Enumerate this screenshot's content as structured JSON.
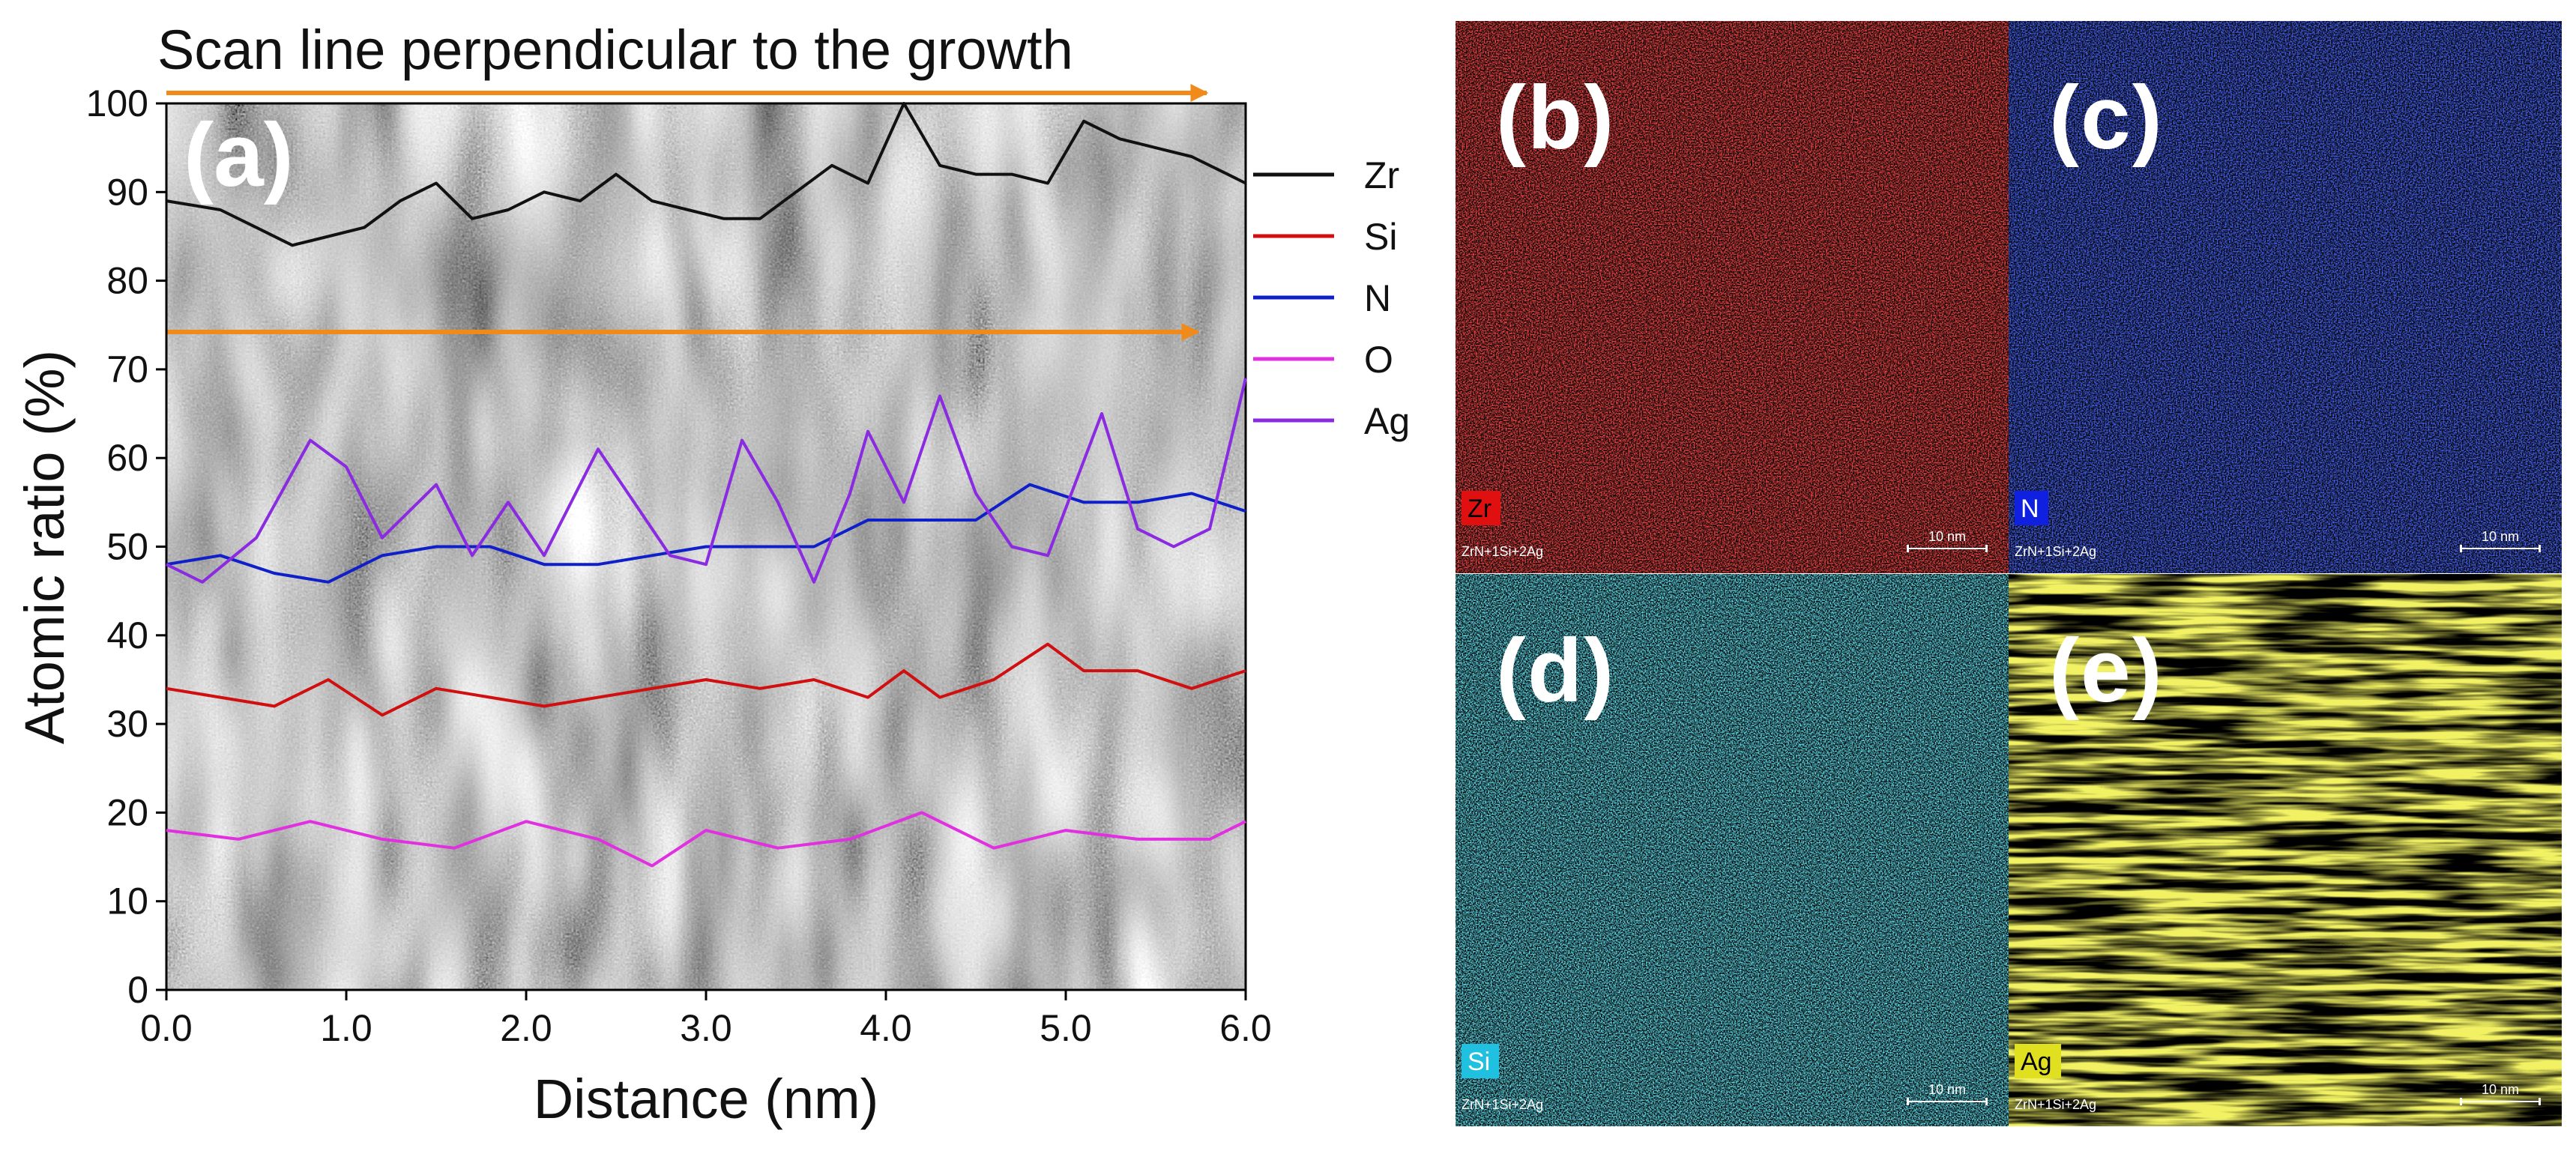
{
  "chart_data": {
    "type": "line",
    "panel_label": "(a)",
    "title": "Scan line perpendicular to the growth",
    "xlabel": "Distance (nm)",
    "ylabel": "Atomic ratio (%)",
    "xlim": [
      0,
      6
    ],
    "ylim": [
      0,
      100
    ],
    "x_ticks": [
      "0.0",
      "1.0",
      "2.0",
      "3.0",
      "4.0",
      "5.0",
      "6.0"
    ],
    "y_ticks": [
      "0",
      "10",
      "20",
      "30",
      "40",
      "50",
      "60",
      "70",
      "80",
      "90",
      "100"
    ],
    "legend_position": "right",
    "series": [
      {
        "name": "Zr",
        "color": "#111111",
        "x": [
          0,
          0.3,
          0.5,
          0.7,
          0.9,
          1.1,
          1.3,
          1.5,
          1.7,
          1.9,
          2.1,
          2.3,
          2.5,
          2.7,
          2.9,
          3.1,
          3.3,
          3.5,
          3.7,
          3.9,
          4.1,
          4.3,
          4.5,
          4.7,
          4.9,
          5.1,
          5.3,
          5.5,
          5.7,
          5.9,
          6.0
        ],
        "y": [
          89,
          88,
          86,
          84,
          85,
          86,
          89,
          91,
          87,
          88,
          90,
          89,
          92,
          89,
          88,
          87,
          87,
          90,
          93,
          91,
          100,
          93,
          92,
          92,
          91,
          98,
          96,
          95,
          94,
          92,
          91
        ]
      },
      {
        "name": "Si",
        "color": "#d01010",
        "x": [
          0,
          0.3,
          0.6,
          0.9,
          1.2,
          1.5,
          1.8,
          2.1,
          2.4,
          2.7,
          3.0,
          3.3,
          3.6,
          3.9,
          4.1,
          4.3,
          4.6,
          4.9,
          5.1,
          5.4,
          5.7,
          6.0
        ],
        "y": [
          34,
          33,
          32,
          35,
          31,
          34,
          33,
          32,
          33,
          34,
          35,
          34,
          35,
          33,
          36,
          33,
          35,
          39,
          36,
          36,
          34,
          36
        ]
      },
      {
        "name": "N",
        "color": "#1020c8",
        "x": [
          0,
          0.3,
          0.6,
          0.9,
          1.2,
          1.5,
          1.8,
          2.1,
          2.4,
          2.7,
          3.0,
          3.3,
          3.6,
          3.9,
          4.2,
          4.5,
          4.8,
          5.1,
          5.4,
          5.7,
          6.0
        ],
        "y": [
          48,
          49,
          47,
          46,
          49,
          50,
          50,
          48,
          48,
          49,
          50,
          50,
          50,
          53,
          53,
          53,
          57,
          55,
          55,
          56,
          54
        ]
      },
      {
        "name": "O",
        "color": "#e030e0",
        "x": [
          0,
          0.4,
          0.8,
          1.2,
          1.6,
          2.0,
          2.4,
          2.7,
          3.0,
          3.4,
          3.8,
          4.2,
          4.6,
          5.0,
          5.4,
          5.8,
          6.0
        ],
        "y": [
          18,
          17,
          19,
          17,
          16,
          19,
          17,
          14,
          18,
          16,
          17,
          20,
          16,
          18,
          17,
          17,
          19
        ]
      },
      {
        "name": "Ag",
        "color": "#8a2be2",
        "x": [
          0,
          0.2,
          0.5,
          0.8,
          1.0,
          1.2,
          1.5,
          1.7,
          1.9,
          2.1,
          2.4,
          2.6,
          2.8,
          3.0,
          3.2,
          3.4,
          3.6,
          3.8,
          3.9,
          4.1,
          4.3,
          4.5,
          4.7,
          4.9,
          5.2,
          5.4,
          5.6,
          5.8,
          6.0
        ],
        "y": [
          48,
          46,
          51,
          62,
          59,
          51,
          57,
          49,
          55,
          49,
          61,
          55,
          49,
          48,
          62,
          55,
          46,
          56,
          63,
          55,
          67,
          56,
          50,
          49,
          65,
          52,
          50,
          52,
          69
        ]
      }
    ]
  },
  "maps": [
    {
      "letter": "(b)",
      "element": "Zr",
      "color": "#e01010",
      "badge_text_color": "#000000",
      "sample": "ZrN+1Si+2Ag",
      "scale": "10 nm",
      "texture": "grain"
    },
    {
      "letter": "(c)",
      "element": "N",
      "color": "#1020e0",
      "badge_text_color": "#ffffff",
      "sample": "ZrN+1Si+2Ag",
      "scale": "10 nm",
      "texture": "grain"
    },
    {
      "letter": "(d)",
      "element": "Si",
      "color": "#20c0e0",
      "badge_text_color": "#ffffff",
      "sample": "ZrN+1Si+2Ag",
      "scale": "10 nm",
      "texture": "grain"
    },
    {
      "letter": "(e)",
      "element": "Ag",
      "color": "#e0e020",
      "badge_text_color": "#000000",
      "sample": "ZrN+1Si+2Ag",
      "scale": "10 nm",
      "texture": "streaks"
    }
  ]
}
